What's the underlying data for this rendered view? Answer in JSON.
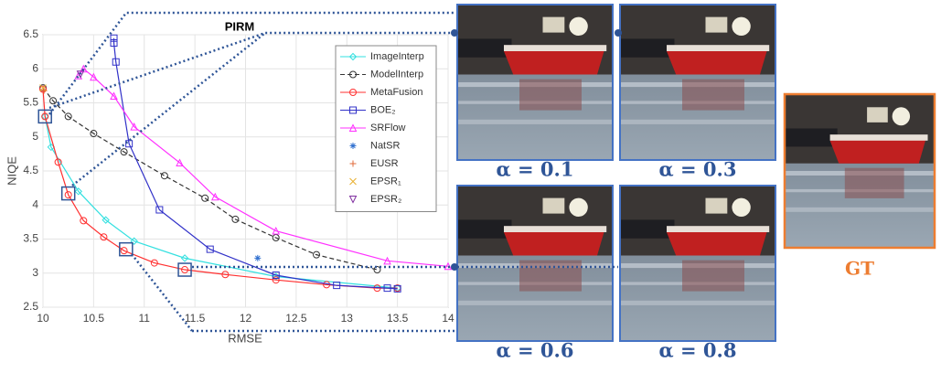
{
  "chart_data": {
    "type": "line",
    "title": "PIRM",
    "x_label": "RMSE",
    "y_label": "NIQE",
    "xlim": [
      10,
      14
    ],
    "ylim": [
      2.5,
      6.5
    ],
    "xticks": [
      10,
      10.5,
      11,
      11.5,
      12,
      12.5,
      13,
      13.5,
      14
    ],
    "yticks": [
      2.5,
      3,
      3.5,
      4,
      4.5,
      5,
      5.5,
      6,
      6.5
    ],
    "grid": true,
    "legend": "upper right",
    "series": [
      {
        "name": "ImageInterp",
        "color": "#33e0e0",
        "marker": "diamond",
        "dashed": false,
        "x": [
          10.02,
          10.08,
          10.35,
          10.62,
          10.9,
          11.4,
          12.3,
          13.5
        ],
        "values": [
          5.3,
          4.85,
          4.2,
          3.78,
          3.47,
          3.22,
          2.95,
          2.78
        ]
      },
      {
        "name": "ModelInterp",
        "color": "#333333",
        "marker": "circle",
        "dashed": true,
        "x": [
          10.0,
          10.1,
          10.25,
          10.5,
          10.8,
          11.2,
          11.6,
          11.9,
          12.3,
          12.7,
          13.3
        ],
        "values": [
          5.72,
          5.53,
          5.3,
          5.05,
          4.78,
          4.43,
          4.1,
          3.79,
          3.52,
          3.27,
          3.05
        ]
      },
      {
        "name": "MetaFusion",
        "color": "#ff3030",
        "marker": "circle",
        "dashed": false,
        "x": [
          10.0,
          10.02,
          10.15,
          10.25,
          10.4,
          10.6,
          10.8,
          11.1,
          11.4,
          11.8,
          12.3,
          12.8,
          13.3,
          13.5
        ],
        "values": [
          5.7,
          5.3,
          4.63,
          4.15,
          3.77,
          3.53,
          3.33,
          3.15,
          3.05,
          2.98,
          2.9,
          2.83,
          2.78,
          2.78
        ]
      },
      {
        "name": "BOE₂",
        "color": "#3030c8",
        "marker": "square",
        "dashed": false,
        "x": [
          10.7,
          10.7,
          10.72,
          10.85,
          11.15,
          11.65,
          12.3,
          12.9,
          13.4,
          13.5
        ],
        "values": [
          6.45,
          6.38,
          6.1,
          4.9,
          3.93,
          3.35,
          2.97,
          2.82,
          2.78,
          2.77
        ]
      },
      {
        "name": "SRFlow",
        "color": "#ff30ff",
        "marker": "triangle-up",
        "dashed": false,
        "x": [
          10.35,
          10.4,
          10.5,
          10.7,
          10.9,
          11.35,
          11.7,
          12.3,
          13.4,
          14.0
        ],
        "values": [
          5.9,
          6.0,
          5.88,
          5.6,
          5.15,
          4.62,
          4.12,
          3.62,
          3.18,
          3.1
        ]
      },
      {
        "name": "NatSR",
        "color": "#3070d0",
        "marker": "star",
        "dashed": false,
        "x": [
          12.12
        ],
        "values": [
          3.22
        ]
      },
      {
        "name": "EUSR",
        "color": "#e06a3a",
        "marker": "plus",
        "dashed": false,
        "x": [
          10.01
        ],
        "values": [
          5.68
        ]
      },
      {
        "name": "EPSR₁",
        "color": "#e8b030",
        "marker": "x",
        "dashed": false,
        "x": [
          10.0
        ],
        "values": [
          5.72
        ]
      },
      {
        "name": "EPSR₂",
        "color": "#8030a0",
        "marker": "triangle-down",
        "dashed": false,
        "x": [
          10.37
        ],
        "values": [
          5.92
        ]
      }
    ]
  },
  "panels": [
    {
      "caption": "α = 0.1"
    },
    {
      "caption": "α = 0.3"
    },
    {
      "caption": "α = 0.6"
    },
    {
      "caption": "α = 0.8"
    }
  ],
  "gt": {
    "caption": "GT"
  }
}
